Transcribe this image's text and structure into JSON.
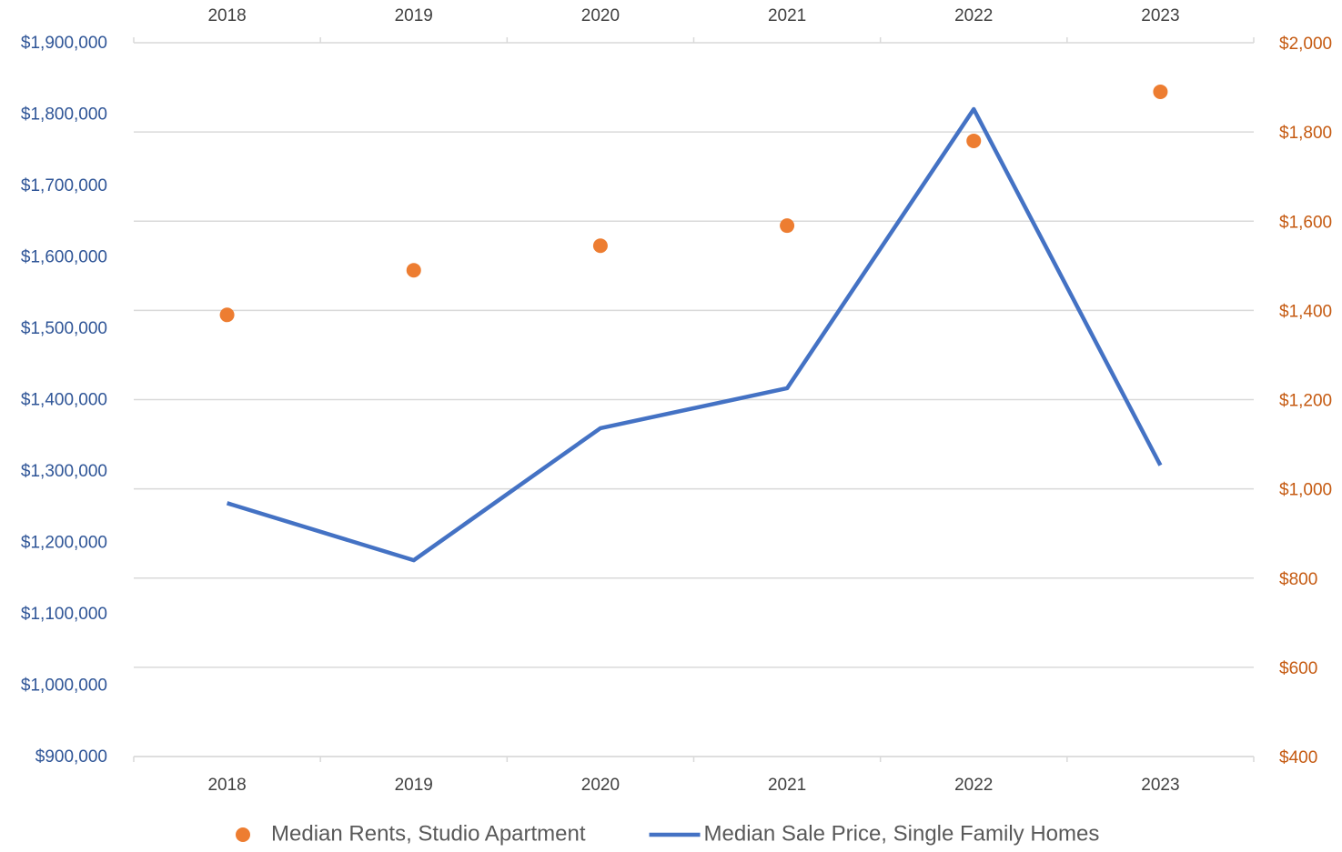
{
  "chart_data": {
    "type": "line",
    "categories": [
      "2018",
      "2019",
      "2020",
      "2021",
      "2022",
      "2023"
    ],
    "series": [
      {
        "name": "Median Rents, Studio Apartment",
        "type": "scatter",
        "axis": "y2",
        "color": "#ed7d31",
        "values": [
          1390,
          1490,
          1545,
          1590,
          1780,
          1890
        ]
      },
      {
        "name": "Median Sale Price, Single Family Homes",
        "type": "line",
        "axis": "y",
        "color": "#4472c4",
        "values": [
          1255000,
          1175000,
          1360000,
          1416000,
          1807000,
          1308000
        ]
      }
    ],
    "ylim": [
      900000,
      1900000
    ],
    "yticks": [
      {
        "value": 900000,
        "label": "$900,000"
      },
      {
        "value": 1000000,
        "label": "$1,000,000"
      },
      {
        "value": 1100000,
        "label": "$1,100,000"
      },
      {
        "value": 1200000,
        "label": "$1,200,000"
      },
      {
        "value": 1300000,
        "label": "$1,300,000"
      },
      {
        "value": 1400000,
        "label": "$1,400,000"
      },
      {
        "value": 1500000,
        "label": "$1,500,000"
      },
      {
        "value": 1600000,
        "label": "$1,600,000"
      },
      {
        "value": 1700000,
        "label": "$1,700,000"
      },
      {
        "value": 1800000,
        "label": "$1,800,000"
      },
      {
        "value": 1900000,
        "label": "$1,900,000"
      }
    ],
    "y2lim": [
      400,
      2000
    ],
    "y2ticks": [
      {
        "value": 400,
        "label": "$400"
      },
      {
        "value": 600,
        "label": "$600"
      },
      {
        "value": 800,
        "label": "$800"
      },
      {
        "value": 1000,
        "label": "$1,000"
      },
      {
        "value": 1200,
        "label": "$1,200"
      },
      {
        "value": 1400,
        "label": "$1,400"
      },
      {
        "value": 1600,
        "label": "$1,600"
      },
      {
        "value": 1800,
        "label": "$1,800"
      },
      {
        "value": 2000,
        "label": "$2,000"
      }
    ],
    "yaxis_color": "#2f5597",
    "y2axis_color": "#c55a11",
    "grid": "y2",
    "legend": "bottom"
  }
}
